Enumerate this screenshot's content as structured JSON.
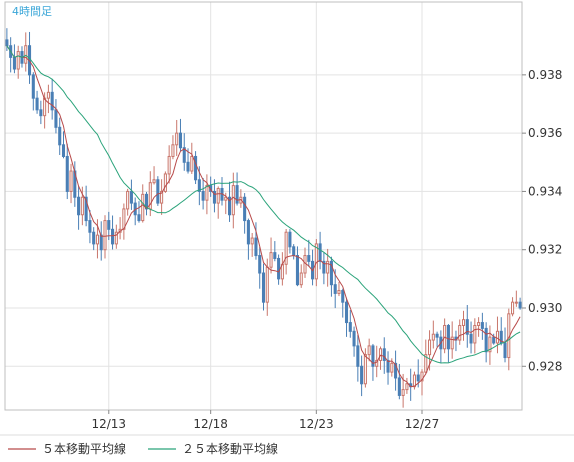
{
  "chart_data": {
    "type": "candlestick",
    "timeframe_label": "4時間足",
    "ylim": [
      0.9265,
      0.9405
    ],
    "y_ticks": [
      0.928,
      0.93,
      0.932,
      0.934,
      0.936,
      0.938
    ],
    "y_tick_labels": [
      "0.928",
      "0.930",
      "0.932",
      "0.934",
      "0.936",
      "0.938"
    ],
    "x_tick_labels": [
      {
        "label": "12/13",
        "index": 27
      },
      {
        "label": "12/18",
        "index": 54
      },
      {
        "label": "12/23",
        "index": 82
      },
      {
        "label": "12/27",
        "index": 110
      }
    ],
    "grid": true,
    "legend_position": "bottom-left",
    "colors": {
      "up": "#c9766b",
      "down": "#4a7fb5",
      "ma5": "#b84a4a",
      "ma25": "#2aa37a",
      "grid": "#e3e3e3",
      "frame": "#bfbfbf",
      "timeframe_label": "#3aa6d8"
    },
    "series": [
      {
        "name": "５本移動平均線",
        "type": "line",
        "period": 5
      },
      {
        "name": "２５本移動平均線",
        "type": "line",
        "period": 25
      }
    ],
    "closes": [
      0.939,
      0.9386,
      0.9382,
      0.9388,
      0.9384,
      0.939,
      0.938,
      0.9372,
      0.9368,
      0.9366,
      0.9372,
      0.9374,
      0.9368,
      0.9362,
      0.9356,
      0.9352,
      0.934,
      0.9347,
      0.9338,
      0.9332,
      0.9338,
      0.933,
      0.9326,
      0.9322,
      0.9325,
      0.932,
      0.933,
      0.9327,
      0.9322,
      0.9326,
      0.9327,
      0.9334,
      0.934,
      0.9336,
      0.9332,
      0.933,
      0.9339,
      0.9334,
      0.9343,
      0.9344,
      0.9336,
      0.934,
      0.9346,
      0.9352,
      0.9356,
      0.936,
      0.9355,
      0.935,
      0.9347,
      0.9352,
      0.9344,
      0.934,
      0.9337,
      0.9342,
      0.934,
      0.9336,
      0.9341,
      0.9337,
      0.9338,
      0.9332,
      0.9342,
      0.9336,
      0.9338,
      0.933,
      0.9322,
      0.9324,
      0.9318,
      0.9312,
      0.9302,
      0.9314,
      0.9319,
      0.9317,
      0.931,
      0.9315,
      0.9326,
      0.9321,
      0.9318,
      0.9308,
      0.9312,
      0.9318,
      0.9316,
      0.931,
      0.9322,
      0.9316,
      0.9312,
      0.9316,
      0.9308,
      0.9305,
      0.9306,
      0.9302,
      0.9295,
      0.9292,
      0.9287,
      0.928,
      0.9274,
      0.9284,
      0.9287,
      0.928,
      0.9282,
      0.9286,
      0.9282,
      0.9278,
      0.9281,
      0.9276,
      0.927,
      0.9272,
      0.9274,
      0.9273,
      0.9277,
      0.9275,
      0.9278,
      0.9284,
      0.9289,
      0.9291,
      0.929,
      0.9286,
      0.9294,
      0.9286,
      0.929,
      0.9289,
      0.9294,
      0.9296,
      0.9291,
      0.9288,
      0.9294,
      0.9295,
      0.9293,
      0.9285,
      0.929,
      0.9288,
      0.9292,
      0.9288,
      0.9283,
      0.9298,
      0.9302,
      0.9302,
      0.93
    ]
  }
}
